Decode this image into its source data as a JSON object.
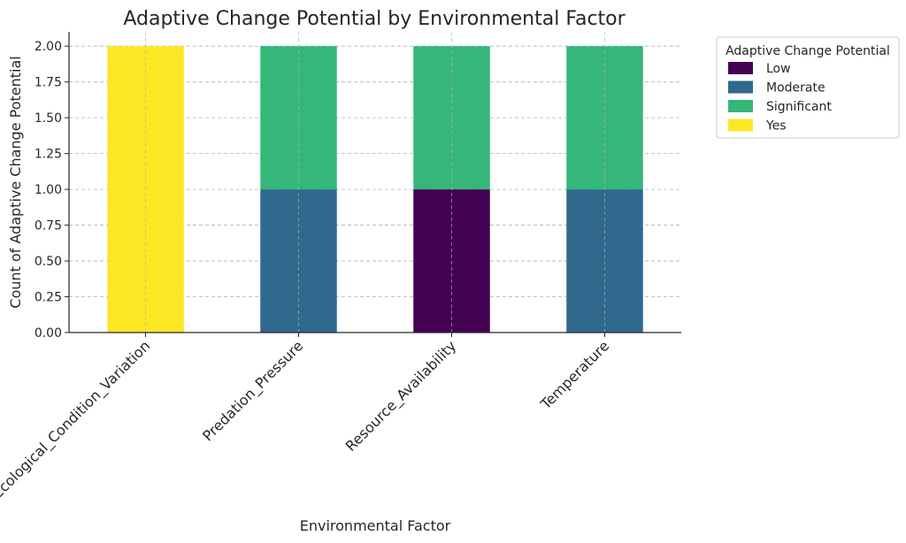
{
  "chart_data": {
    "type": "bar",
    "stacked": true,
    "title": "Adaptive Change Potential by Environmental Factor",
    "xlabel": "Environmental Factor",
    "ylabel": "Count of Adaptive Change Potential",
    "ylim": [
      0,
      2.1
    ],
    "yticks": [
      "0.00",
      "0.25",
      "0.50",
      "0.75",
      "1.00",
      "1.25",
      "1.50",
      "1.75",
      "2.00"
    ],
    "grid": true,
    "legend_title": "Adaptive Change Potential",
    "legend_position": "outside-top-right",
    "categories": [
      "Ecological_Condition_Variation",
      "Predation_Pressure",
      "Resource_Availability",
      "Temperature"
    ],
    "series": [
      {
        "name": "Low",
        "color": "#440154",
        "values": [
          0,
          0,
          1,
          0
        ]
      },
      {
        "name": "Moderate",
        "color": "#31688e",
        "values": [
          0,
          1,
          0,
          1
        ]
      },
      {
        "name": "Significant",
        "color": "#35b779",
        "values": [
          0,
          1,
          1,
          1
        ]
      },
      {
        "name": "Yes",
        "color": "#fde725",
        "values": [
          2,
          0,
          0,
          0
        ]
      }
    ]
  }
}
